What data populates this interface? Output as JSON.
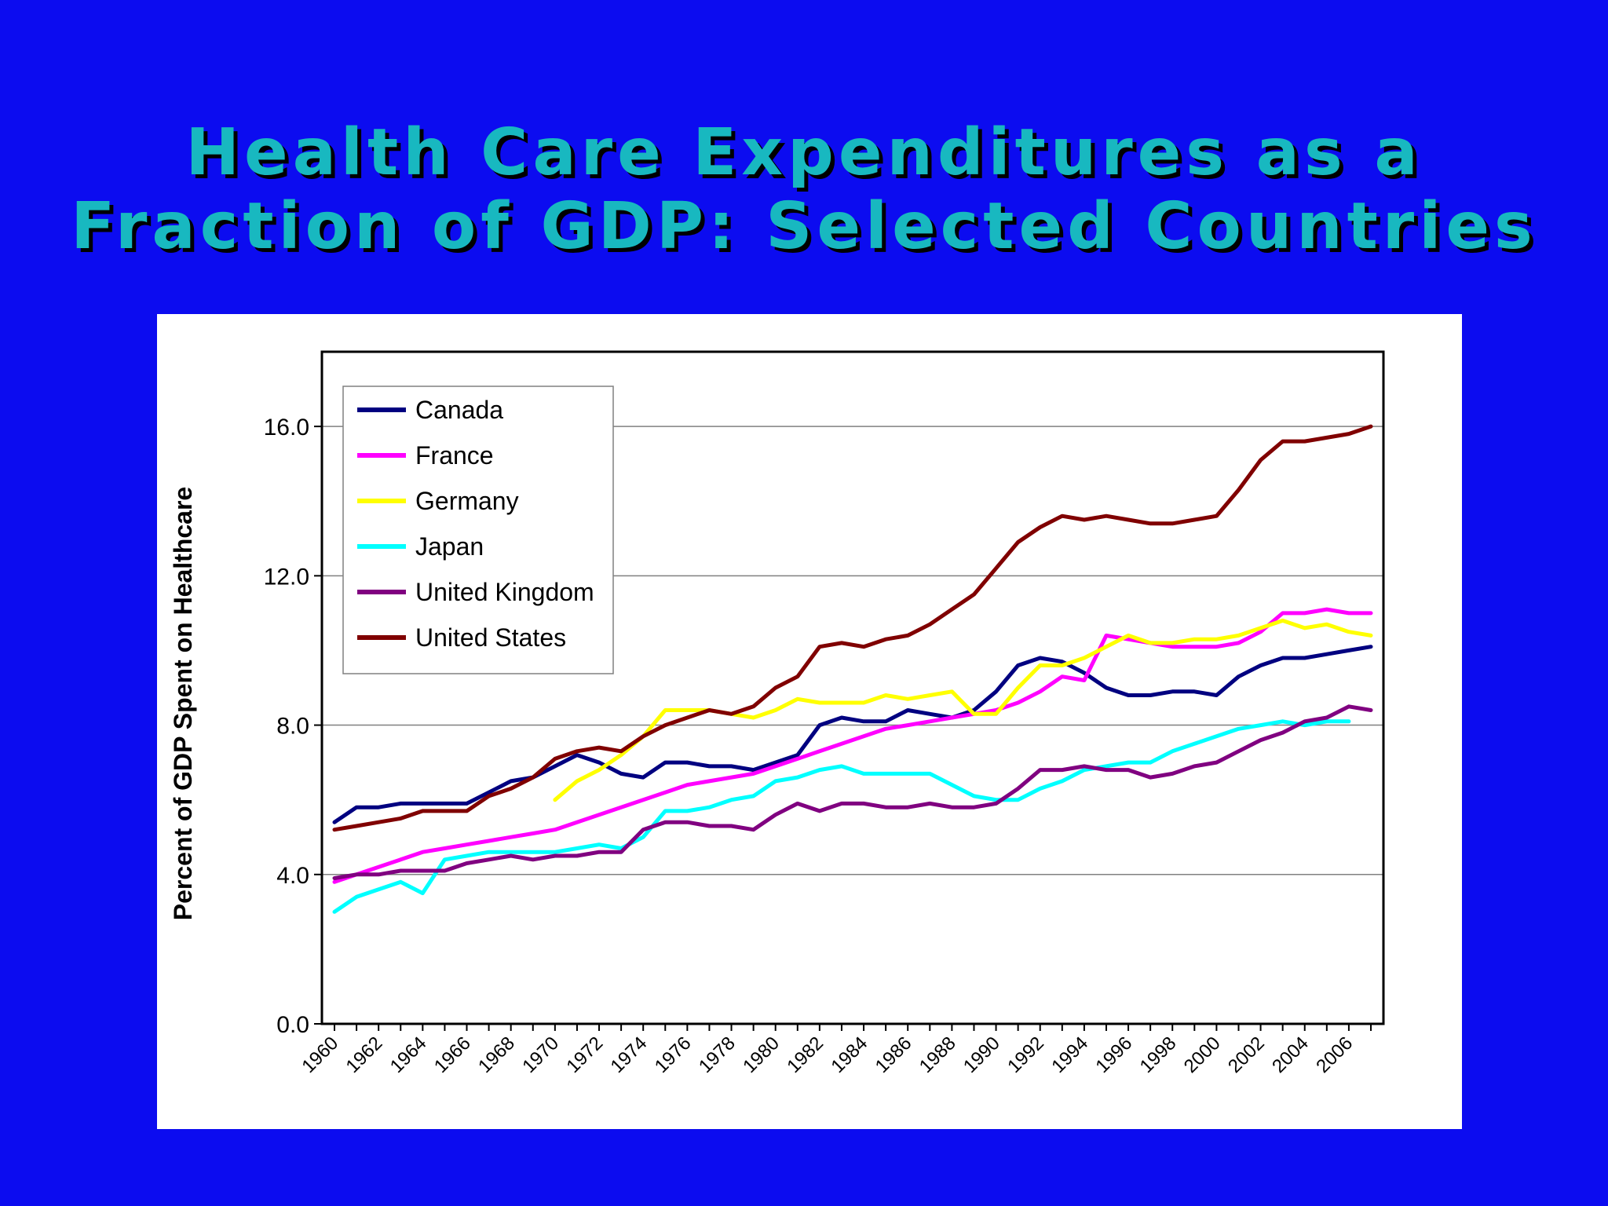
{
  "slide": {
    "title_line1": "Health Care Expenditures as a",
    "title_line2": "Fraction of GDP: Selected Countries"
  },
  "chart_data": {
    "type": "line",
    "title": "Health Care Expenditures as a Fraction of GDP: Selected Countries",
    "xlabel": "",
    "ylabel": "Percent of GDP Spent on Healthcare",
    "ylim": [
      0,
      18
    ],
    "yticks": [
      0,
      4,
      8,
      12,
      16
    ],
    "ytick_labels": [
      "0.0",
      "4.0",
      "8.0",
      "12.0",
      "16.0"
    ],
    "xtick_labels": [
      "1960",
      "1962",
      "1964",
      "1966",
      "1968",
      "1970",
      "1972",
      "1974",
      "1976",
      "1978",
      "1980",
      "1982",
      "1984",
      "1986",
      "1988",
      "1990",
      "1992",
      "1994",
      "1996",
      "1998",
      "2000",
      "2002",
      "2004",
      "2006"
    ],
    "grid": "horizontal",
    "legend_position": "top-left",
    "x": [
      1960,
      1961,
      1962,
      1963,
      1964,
      1965,
      1966,
      1967,
      1968,
      1969,
      1970,
      1971,
      1972,
      1973,
      1974,
      1975,
      1976,
      1977,
      1978,
      1979,
      1980,
      1981,
      1982,
      1983,
      1984,
      1985,
      1986,
      1987,
      1988,
      1989,
      1990,
      1991,
      1992,
      1993,
      1994,
      1995,
      1996,
      1997,
      1998,
      1999,
      2000,
      2001,
      2002,
      2003,
      2004,
      2005,
      2006,
      2007
    ],
    "series": [
      {
        "name": "Canada",
        "color": "#000080",
        "values": [
          5.4,
          5.8,
          5.8,
          5.9,
          5.9,
          5.9,
          5.9,
          6.2,
          6.5,
          6.6,
          6.9,
          7.2,
          7.0,
          6.7,
          6.6,
          7.0,
          7.0,
          6.9,
          6.9,
          6.8,
          7.0,
          7.2,
          8.0,
          8.2,
          8.1,
          8.1,
          8.4,
          8.3,
          8.2,
          8.4,
          8.9,
          9.6,
          9.8,
          9.7,
          9.4,
          9.0,
          8.8,
          8.8,
          8.9,
          8.9,
          8.8,
          9.3,
          9.6,
          9.8,
          9.8,
          9.9,
          10.0,
          10.1
        ]
      },
      {
        "name": "France",
        "color": "#ff00ff",
        "values": [
          3.8,
          4.0,
          4.2,
          4.4,
          4.6,
          4.7,
          4.8,
          4.9,
          5.0,
          5.1,
          5.2,
          5.4,
          5.6,
          5.8,
          6.0,
          6.2,
          6.4,
          6.5,
          6.6,
          6.7,
          6.9,
          7.1,
          7.3,
          7.5,
          7.7,
          7.9,
          8.0,
          8.1,
          8.2,
          8.3,
          8.4,
          8.6,
          8.9,
          9.3,
          9.2,
          10.4,
          10.3,
          10.2,
          10.1,
          10.1,
          10.1,
          10.2,
          10.5,
          11.0,
          11.0,
          11.1,
          11.0,
          11.0
        ]
      },
      {
        "name": "Germany",
        "color": "#ffff00",
        "values": [
          null,
          null,
          null,
          null,
          null,
          null,
          null,
          null,
          null,
          null,
          6.0,
          6.5,
          6.8,
          7.2,
          7.7,
          8.4,
          8.4,
          8.4,
          8.3,
          8.2,
          8.4,
          8.7,
          8.6,
          8.6,
          8.6,
          8.8,
          8.7,
          8.8,
          8.9,
          8.3,
          8.3,
          9.0,
          9.6,
          9.6,
          9.8,
          10.1,
          10.4,
          10.2,
          10.2,
          10.3,
          10.3,
          10.4,
          10.6,
          10.8,
          10.6,
          10.7,
          10.5,
          10.4
        ]
      },
      {
        "name": "Japan",
        "color": "#00ffff",
        "values": [
          3.0,
          3.4,
          3.6,
          3.8,
          3.5,
          4.4,
          4.5,
          4.6,
          4.6,
          4.6,
          4.6,
          4.7,
          4.8,
          4.7,
          5.0,
          5.7,
          5.7,
          5.8,
          6.0,
          6.1,
          6.5,
          6.6,
          6.8,
          6.9,
          6.7,
          6.7,
          6.7,
          6.7,
          6.4,
          6.1,
          6.0,
          6.0,
          6.3,
          6.5,
          6.8,
          6.9,
          7.0,
          7.0,
          7.3,
          7.5,
          7.7,
          7.9,
          8.0,
          8.1,
          8.0,
          8.1,
          8.1,
          null
        ]
      },
      {
        "name": "United Kingdom",
        "color": "#800080",
        "values": [
          3.9,
          4.0,
          4.0,
          4.1,
          4.1,
          4.1,
          4.3,
          4.4,
          4.5,
          4.4,
          4.5,
          4.5,
          4.6,
          4.6,
          5.2,
          5.4,
          5.4,
          5.3,
          5.3,
          5.2,
          5.6,
          5.9,
          5.7,
          5.9,
          5.9,
          5.8,
          5.8,
          5.9,
          5.8,
          5.8,
          5.9,
          6.3,
          6.8,
          6.8,
          6.9,
          6.8,
          6.8,
          6.6,
          6.7,
          6.9,
          7.0,
          7.3,
          7.6,
          7.8,
          8.1,
          8.2,
          8.5,
          8.4
        ]
      },
      {
        "name": "United States",
        "color": "#800000",
        "values": [
          5.2,
          5.3,
          5.4,
          5.5,
          5.7,
          5.7,
          5.7,
          6.1,
          6.3,
          6.6,
          7.1,
          7.3,
          7.4,
          7.3,
          7.7,
          8.0,
          8.2,
          8.4,
          8.3,
          8.5,
          9.0,
          9.3,
          10.1,
          10.2,
          10.1,
          10.3,
          10.4,
          10.7,
          11.1,
          11.5,
          12.2,
          12.9,
          13.3,
          13.6,
          13.5,
          13.6,
          13.5,
          13.4,
          13.4,
          13.5,
          13.6,
          14.3,
          15.1,
          15.6,
          15.6,
          15.7,
          15.8,
          16.0
        ]
      }
    ]
  }
}
